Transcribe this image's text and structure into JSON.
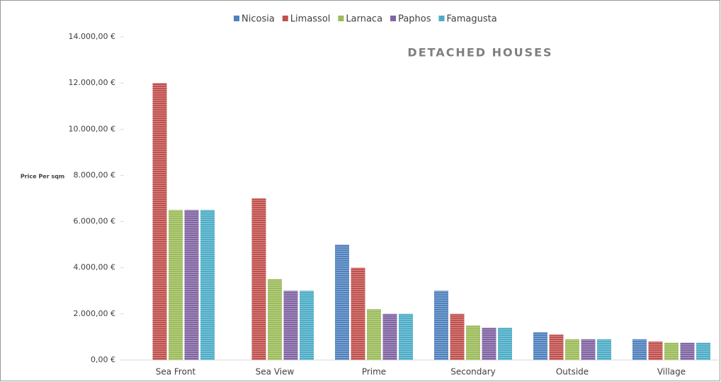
{
  "chart_data": {
    "type": "bar",
    "title": "DETACHED HOUSES",
    "y_label": "Price Per sqm",
    "categories": [
      "Sea Front",
      "Sea View",
      "Prime",
      "Secondary",
      "Outside",
      "Village"
    ],
    "series": [
      {
        "name": "Nicosia",
        "color": "#4f81bd",
        "values": [
          null,
          null,
          5000,
          3000,
          1200,
          900
        ]
      },
      {
        "name": "Limassol",
        "color": "#c0504d",
        "values": [
          12000,
          7000,
          4000,
          2000,
          1100,
          800
        ]
      },
      {
        "name": "Larnaca",
        "color": "#9bbb59",
        "values": [
          6500,
          3500,
          2200,
          1500,
          900,
          750
        ]
      },
      {
        "name": "Paphos",
        "color": "#8064a2",
        "values": [
          6500,
          3000,
          2000,
          1400,
          900,
          750
        ]
      },
      {
        "name": "Famagusta",
        "color": "#4bacc6",
        "values": [
          6500,
          3000,
          2000,
          1400,
          900,
          750
        ]
      }
    ],
    "ylim": [
      0,
      14000
    ],
    "yticks": [
      {
        "value": 0,
        "label": "0,00 €"
      },
      {
        "value": 2000,
        "label": "2.000,00 €"
      },
      {
        "value": 4000,
        "label": "4.000,00 €"
      },
      {
        "value": 6000,
        "label": "6.000,00 €"
      },
      {
        "value": 8000,
        "label": "8.000,00 €"
      },
      {
        "value": 10000,
        "label": "10.000,00 €"
      },
      {
        "value": 12000,
        "label": "12.000,00 €"
      },
      {
        "value": 14000,
        "label": "14.000,00 €"
      }
    ],
    "legend": "top"
  }
}
